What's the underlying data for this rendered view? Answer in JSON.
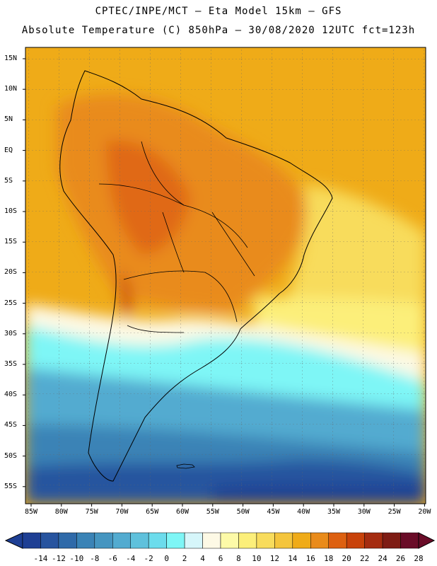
{
  "header": {
    "line1": "CPTEC/INPE/MCT —  Eta Model 15km — GFS",
    "line2": "Absolute Temperature (C) 850hPa — 30/08/2020 12UTC fct=123h"
  },
  "map": {
    "latitude_labels": [
      "15N",
      "10N",
      "5N",
      "EQ",
      "5S",
      "10S",
      "15S",
      "20S",
      "25S",
      "30S",
      "35S",
      "40S",
      "45S",
      "50S",
      "55S"
    ],
    "longitude_labels": [
      "85W",
      "80W",
      "75W",
      "70W",
      "65W",
      "60W",
      "55W",
      "50W",
      "45W",
      "40W",
      "35W",
      "30W",
      "25W",
      "20W"
    ]
  },
  "colorbar": {
    "labels": [
      "-14",
      "-12",
      "-10",
      "-8",
      "-6",
      "-4",
      "-2",
      "0",
      "2",
      "4",
      "6",
      "8",
      "10",
      "12",
      "14",
      "16",
      "18",
      "20",
      "22",
      "24",
      "26",
      "28"
    ],
    "colors": [
      "#1e3f94",
      "#27549f",
      "#2f6aa9",
      "#3a83b6",
      "#4595c0",
      "#52abd0",
      "#5fc1dc",
      "#6cdcec",
      "#7ef6f6",
      "#d6f6fa",
      "#fdf9e5",
      "#fdfaa8",
      "#fcef7a",
      "#f8dc5c",
      "#f4c53c",
      "#efab18",
      "#e98b1a",
      "#dd6010",
      "#c8420a",
      "#a52c10",
      "#7e1c14",
      "#6a0c28"
    ]
  }
}
